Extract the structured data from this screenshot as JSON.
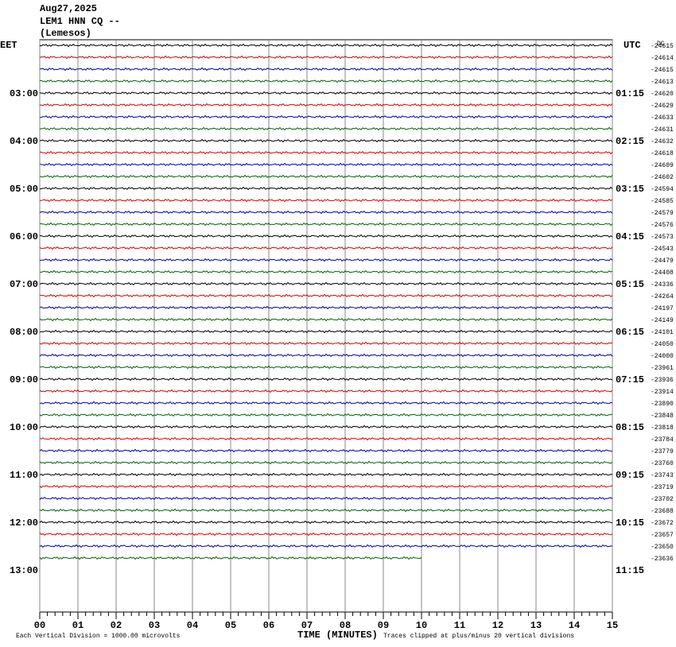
{
  "header": {
    "date": "Aug27,2025",
    "station": "LEM1 HNN CQ --",
    "location": "(Lemesos)"
  },
  "left_zone": "EET",
  "right_zone": "UTC",
  "dc_label": "DC",
  "hours": [
    {
      "eet": "03:00",
      "utc": "01:15"
    },
    {
      "eet": "04:00",
      "utc": "02:15"
    },
    {
      "eet": "05:00",
      "utc": "03:15"
    },
    {
      "eet": "06:00",
      "utc": "04:15"
    },
    {
      "eet": "07:00",
      "utc": "05:15"
    },
    {
      "eet": "08:00",
      "utc": "06:15"
    },
    {
      "eet": "09:00",
      "utc": "07:15"
    },
    {
      "eet": "10:00",
      "utc": "08:15"
    },
    {
      "eet": "11:00",
      "utc": "09:15"
    },
    {
      "eet": "12:00",
      "utc": "10:15"
    },
    {
      "eet": "13:00",
      "utc": "11:15"
    }
  ],
  "offsets": [
    "-24615",
    "-24614",
    "-24615",
    "-24613",
    "-24620",
    "-24629",
    "-24633",
    "-24631",
    "-24632",
    "-24618",
    "-24609",
    "-24602",
    "-24594",
    "-24585",
    "-24579",
    "-24576",
    "-24573",
    "-24543",
    "-24479",
    "-24408",
    "-24336",
    "-24264",
    "-24197",
    "-24149",
    "-24101",
    "-24050",
    "-24000",
    "-23961",
    "-23936",
    "-23914",
    "-23890",
    "-23848",
    "-23818",
    "-23784",
    "-23779",
    "-23760",
    "-23743",
    "-23719",
    "-23702",
    "-23688",
    "-23672",
    "-23657",
    "-23650",
    "-23636"
  ],
  "x_ticks": [
    "00",
    "01",
    "02",
    "03",
    "04",
    "05",
    "06",
    "07",
    "08",
    "09",
    "10",
    "11",
    "12",
    "13",
    "14",
    "15"
  ],
  "x_axis_title": "TIME (MINUTES)",
  "footer_left": "Each Vertical Division = 1000.00 microvolts",
  "footer_right": "Traces clipped at plus/minus 20 vertical divisions"
}
